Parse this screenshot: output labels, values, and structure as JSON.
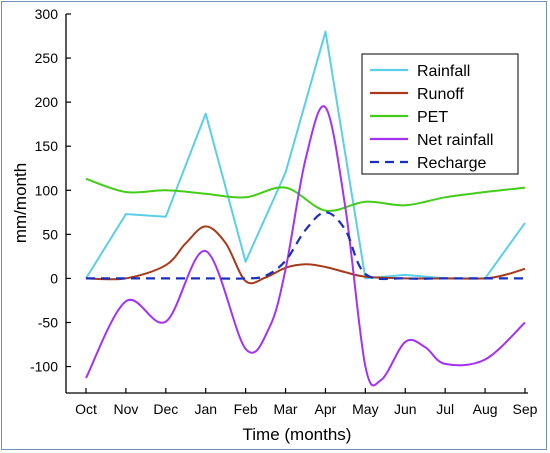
{
  "chart_data": {
    "type": "line",
    "xlabel": "Time (months)",
    "ylabel": "mm/month",
    "ylim": [
      -130,
      300
    ],
    "xlim": [
      0,
      11
    ],
    "categories": [
      "Oct",
      "Nov",
      "Dec",
      "Jan",
      "Feb",
      "Mar",
      "Apr",
      "May",
      "Jun",
      "Jul",
      "Aug",
      "Sep"
    ],
    "yticks": [
      -100,
      -50,
      0,
      50,
      100,
      150,
      200,
      250,
      300
    ],
    "grid": false,
    "legend_position": "top-right",
    "series": [
      {
        "name": "Rainfall",
        "color": "#5bcfe6",
        "style": "solid",
        "smooth": false,
        "x": [
          0,
          1,
          2,
          3,
          4,
          5,
          6,
          7,
          8,
          9,
          10,
          11
        ],
        "values": [
          0,
          73,
          70,
          187,
          19,
          120,
          280,
          0,
          4,
          0,
          0,
          63
        ]
      },
      {
        "name": "Runoff",
        "color": "#a63a1a",
        "style": "solid",
        "smooth": true,
        "x": [
          0,
          1,
          2,
          2.5,
          3,
          3.5,
          4,
          4.5,
          5,
          5.5,
          6,
          6.5,
          7,
          8,
          9,
          10,
          10.5,
          11
        ],
        "values": [
          0,
          0,
          15,
          40,
          59,
          40,
          -3,
          1,
          12,
          16,
          13,
          7,
          2,
          0,
          0,
          0,
          4,
          11
        ]
      },
      {
        "name": "PET",
        "color": "#44cc1a",
        "style": "solid",
        "smooth": true,
        "x": [
          0,
          1,
          2,
          3,
          4,
          5,
          6,
          7,
          8,
          9,
          10,
          11
        ],
        "values": [
          113,
          98,
          100,
          96,
          92,
          103,
          77,
          87,
          83,
          92,
          98,
          103
        ]
      },
      {
        "name": "Net rainfall",
        "color": "#a333f0",
        "style": "solid",
        "smooth": true,
        "x": [
          0,
          1,
          2,
          3,
          4,
          4.6,
          5,
          5.5,
          6,
          6.5,
          7,
          7.4,
          8,
          8.5,
          9,
          10,
          11
        ],
        "values": [
          -113,
          -26,
          -49,
          31,
          -80,
          -55,
          10,
          135,
          194,
          80,
          -100,
          -115,
          -72,
          -78,
          -97,
          -92,
          -50
        ]
      },
      {
        "name": "Recharge",
        "color": "#1a2fbf",
        "style": "dashed",
        "smooth": true,
        "x": [
          0,
          1,
          2,
          3,
          4,
          4.5,
          5,
          5.5,
          6,
          6.5,
          7,
          8,
          9,
          10,
          11
        ],
        "values": [
          0,
          0,
          0,
          0,
          0,
          3,
          20,
          55,
          75,
          55,
          5,
          0,
          0,
          0,
          0
        ]
      }
    ]
  }
}
